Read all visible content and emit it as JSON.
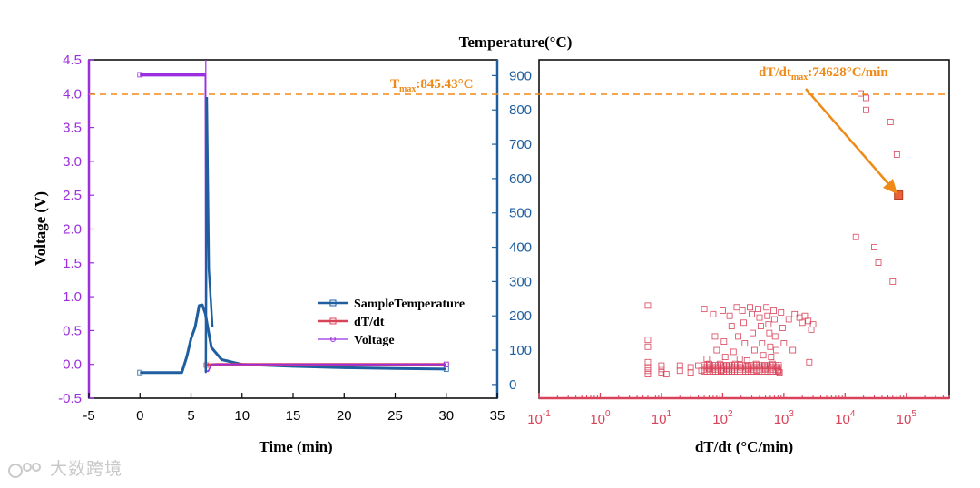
{
  "colors": {
    "voltage": "#9b2fe0",
    "temperature": "#1f5fa0",
    "dtdt": "#d9435a",
    "annotation": "#f08a17",
    "frame": "#000000"
  },
  "top_title": "Temperature(°C)",
  "watermark": "大数跨境",
  "chart_data": [
    {
      "type": "line",
      "xlabel": "Time (min)",
      "ylabel": "Voltage (V)",
      "y2label": "Temperature(°C)",
      "xlim": [
        -5,
        35
      ],
      "ylim": [
        -0.5,
        4.5
      ],
      "y2lim": [
        -40,
        946
      ],
      "xticks": [
        -5,
        0,
        5,
        10,
        15,
        20,
        25,
        30,
        35
      ],
      "xtick_labels": [
        "-5",
        "0",
        "5",
        "10",
        "15",
        "20",
        "25",
        "30",
        "35"
      ],
      "yticks": [
        -0.5,
        0.0,
        0.5,
        1.0,
        1.5,
        2.0,
        2.5,
        3.0,
        3.5,
        4.0,
        4.5
      ],
      "ytick_labels": [
        "-0.5",
        "0.0",
        "0.5",
        "1.0",
        "1.5",
        "2.0",
        "2.5",
        "3.0",
        "3.5",
        "4.0",
        "4.5"
      ],
      "y2ticks": [
        0,
        100,
        200,
        300,
        400,
        500,
        600,
        700,
        800,
        900
      ],
      "y2tick_labels": [
        "0",
        "100",
        "200",
        "300",
        "400",
        "500",
        "600",
        "700",
        "800",
        "900"
      ],
      "legend": [
        "SampleTemperature",
        "dT/dt",
        "Voltage"
      ],
      "series": [
        {
          "name": "SampleTemperature",
          "axis": "left",
          "x": [
            0,
            2,
            4.1,
            4.6,
            5.0,
            5.4,
            5.8,
            6.1,
            6.4,
            6.6,
            7.0,
            8.0,
            10.0,
            15.0,
            20.0,
            25.0,
            30.0
          ],
          "y": [
            -0.12,
            -0.12,
            -0.12,
            0.12,
            0.38,
            0.55,
            0.87,
            0.88,
            0.75,
            0.58,
            0.25,
            0.07,
            0.0,
            -0.03,
            -0.05,
            -0.06,
            -0.07
          ]
        },
        {
          "name": "dT/dt",
          "axis": "left",
          "x": [
            6.5,
            7.5,
            10,
            15,
            20,
            25,
            30
          ],
          "y": [
            -0.01,
            0.0,
            0.0,
            0.0,
            0.0,
            0.0,
            0.0
          ]
        },
        {
          "name": "Voltage",
          "axis": "left",
          "x": [
            0,
            6.3,
            6.4,
            6.45,
            6.55,
            6.7,
            7.0,
            10,
            20,
            30
          ],
          "y": [
            4.28,
            4.28,
            4.28,
            -0.12,
            -0.1,
            -0.1,
            0.0,
            0.0,
            0.0,
            0.0
          ]
        }
      ]
    },
    {
      "type": "scatter",
      "xlabel": "dT/dt (°C/min)",
      "xscale": "log",
      "xlim_log10": [
        -1,
        5.7
      ],
      "ylim": [
        -40,
        946
      ],
      "xticks_log10": [
        -1,
        0,
        1,
        2,
        3,
        4,
        5
      ],
      "xtick_bases": [
        "10",
        "10",
        "10",
        "10",
        "10",
        "10",
        "10"
      ],
      "xtick_exps": [
        "-1",
        "0",
        "1",
        "2",
        "3",
        "4",
        "5"
      ],
      "series": [
        {
          "name": "dT/dt",
          "points": [
            [
              6,
              230
            ],
            [
              6,
              130
            ],
            [
              6,
              110
            ],
            [
              6,
              65
            ],
            [
              6,
              50
            ],
            [
              6,
              40
            ],
            [
              6,
              30
            ],
            [
              10,
              55
            ],
            [
              10,
              45
            ],
            [
              10,
              35
            ],
            [
              12,
              30
            ],
            [
              20,
              55
            ],
            [
              20,
              40
            ],
            [
              30,
              50
            ],
            [
              30,
              35
            ],
            [
              40,
              55
            ],
            [
              45,
              40
            ],
            [
              50,
              220
            ],
            [
              55,
              75
            ],
            [
              60,
              60
            ],
            [
              60,
              45
            ],
            [
              70,
              205
            ],
            [
              75,
              140
            ],
            [
              80,
              100
            ],
            [
              90,
              60
            ],
            [
              95,
              40
            ],
            [
              100,
              215
            ],
            [
              105,
              125
            ],
            [
              110,
              80
            ],
            [
              115,
              55
            ],
            [
              120,
              45
            ],
            [
              130,
              200
            ],
            [
              140,
              170
            ],
            [
              150,
              95
            ],
            [
              160,
              60
            ],
            [
              170,
              225
            ],
            [
              180,
              140
            ],
            [
              190,
              75
            ],
            [
              200,
              50
            ],
            [
              210,
              215
            ],
            [
              220,
              180
            ],
            [
              230,
              120
            ],
            [
              250,
              70
            ],
            [
              260,
              45
            ],
            [
              280,
              225
            ],
            [
              300,
              205
            ],
            [
              310,
              150
            ],
            [
              330,
              100
            ],
            [
              350,
              60
            ],
            [
              360,
              40
            ],
            [
              380,
              220
            ],
            [
              400,
              195
            ],
            [
              420,
              170
            ],
            [
              440,
              120
            ],
            [
              460,
              85
            ],
            [
              480,
              55
            ],
            [
              500,
              45
            ],
            [
              520,
              225
            ],
            [
              540,
              200
            ],
            [
              560,
              175
            ],
            [
              580,
              150
            ],
            [
              600,
              110
            ],
            [
              620,
              80
            ],
            [
              650,
              60
            ],
            [
              680,
              215
            ],
            [
              700,
              190
            ],
            [
              720,
              140
            ],
            [
              750,
              100
            ],
            [
              780,
              50
            ],
            [
              800,
              40
            ],
            [
              850,
              35
            ],
            [
              900,
              210
            ],
            [
              950,
              165
            ],
            [
              1000,
              120
            ],
            [
              1200,
              190
            ],
            [
              1400,
              100
            ],
            [
              1500,
              205
            ],
            [
              1800,
              195
            ],
            [
              2000,
              180
            ],
            [
              2200,
              200
            ],
            [
              2500,
              185
            ],
            [
              2800,
              160
            ],
            [
              3000,
              175
            ],
            [
              2600,
              65
            ],
            [
              15000,
              430
            ],
            [
              18000,
              848
            ],
            [
              22000,
              835
            ],
            [
              22000,
              800
            ],
            [
              30000,
              400
            ],
            [
              35000,
              355
            ],
            [
              55000,
              765
            ],
            [
              60000,
              300
            ],
            [
              70000,
              670
            ]
          ]
        },
        {
          "name": "dT/dt max",
          "points": [
            [
              74628,
              552
            ]
          ]
        }
      ],
      "annotations": {
        "tmax_value": 845.43,
        "tmax_prefix": "T",
        "tmax_sub": "max",
        "tmax_suffix": ":845.43°C",
        "dtmax_value": 74628,
        "dtmax_prefix": "dT/dt",
        "dtmax_sub": "max",
        "dtmax_suffix": ":74628°C/min"
      }
    }
  ]
}
